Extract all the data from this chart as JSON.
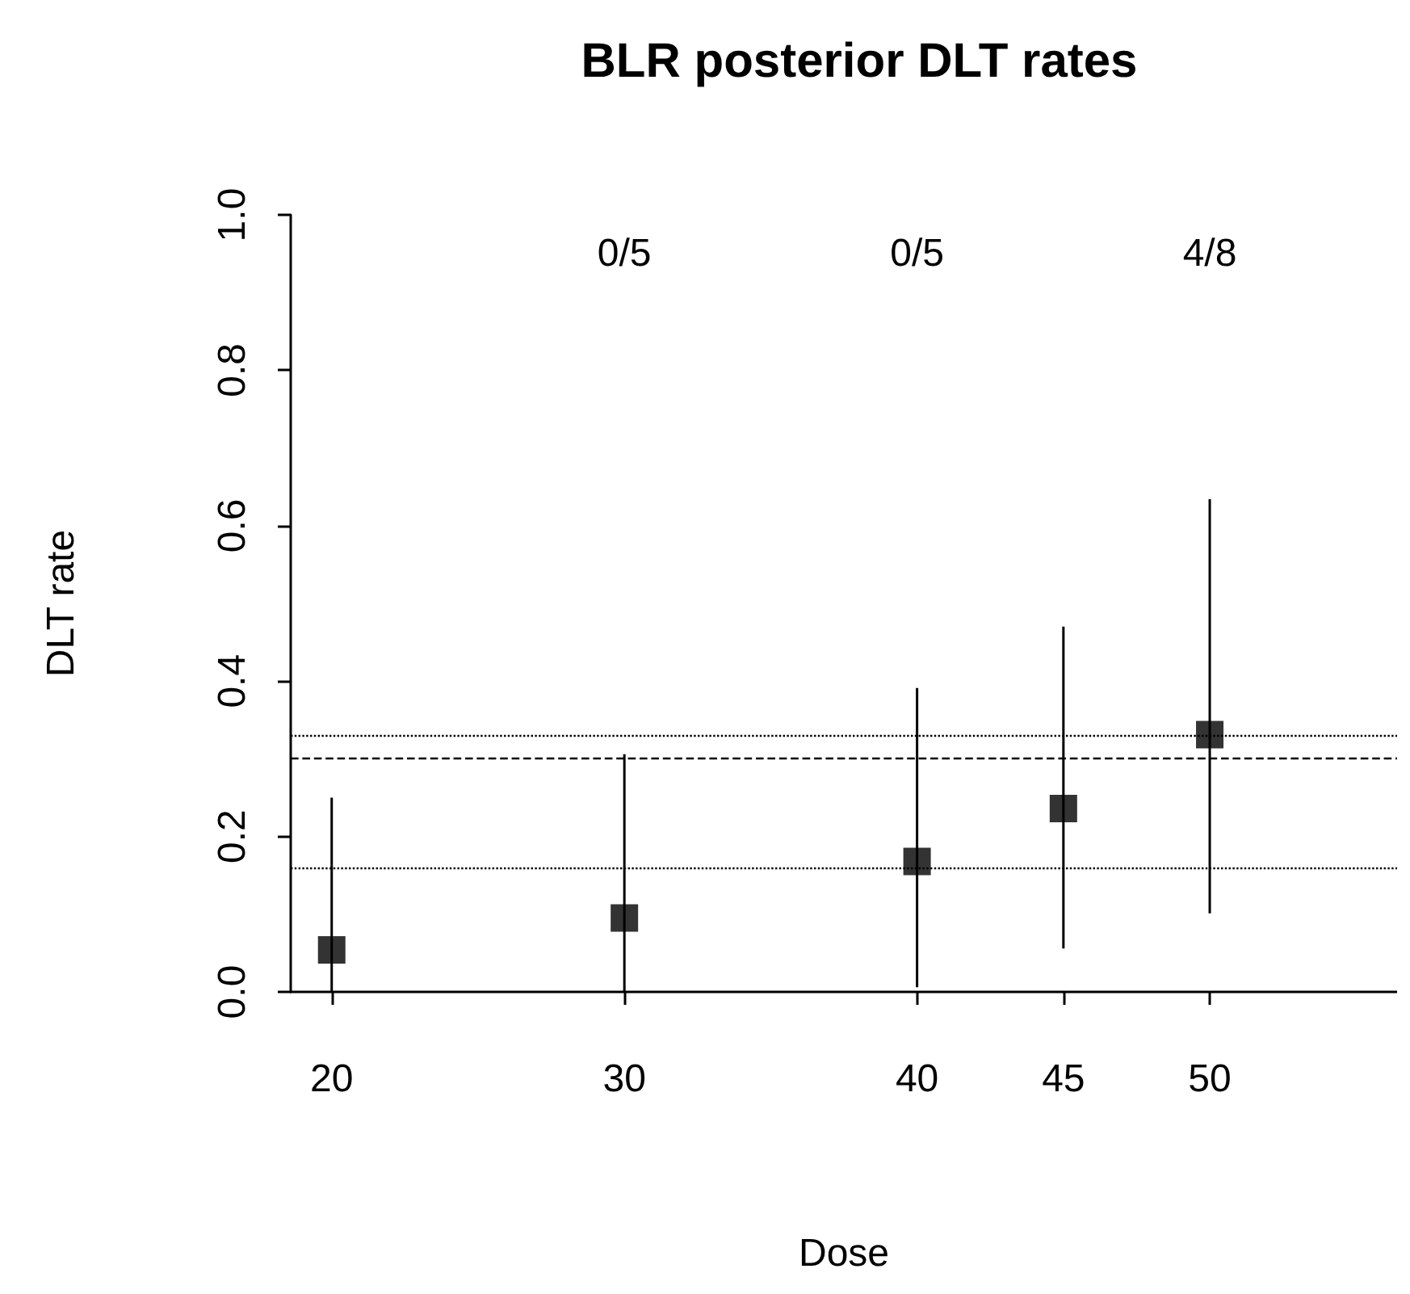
{
  "chart_data": {
    "type": "scatter",
    "title": "BLR posterior DLT rates",
    "xlabel": "Dose",
    "ylabel": "DLT rate",
    "x": [
      20,
      30,
      40,
      45,
      50
    ],
    "series": [
      {
        "color": "#000000",
        "values": [
          0.054,
          0.095,
          0.168,
          0.236,
          0.331
        ],
        "errors": [
          [
            0,
            0.25
          ],
          [
            0,
            0.306
          ],
          [
            0.006,
            0.391
          ],
          [
            0.056,
            0.47
          ],
          [
            0.101,
            0.634
          ]
        ]
      }
    ],
    "marker": "square",
    "xlim": [
      18.6,
      56.4
    ],
    "xticks": [
      20,
      30,
      40,
      45,
      50
    ],
    "ylim": [
      0,
      1
    ],
    "yticks": [
      {
        "value": 0,
        "label": "0.0"
      },
      {
        "value": 0.2,
        "label": "0.2"
      },
      {
        "value": 0.4,
        "label": "0.4"
      },
      {
        "value": 0.6,
        "label": "0.6"
      },
      {
        "value": 0.8,
        "label": "0.8"
      },
      {
        "value": 1,
        "label": "1.0"
      }
    ],
    "ref_lines": [
      {
        "axis": "y",
        "value": 0.33,
        "line_style": "dotted"
      },
      {
        "axis": "y",
        "value": 0.3,
        "line_style": "dashed"
      },
      {
        "axis": "y",
        "value": 0.161,
        "line_style": "dotted"
      }
    ],
    "annotations": [
      "0/5",
      "0/5",
      "4/8"
    ]
  }
}
